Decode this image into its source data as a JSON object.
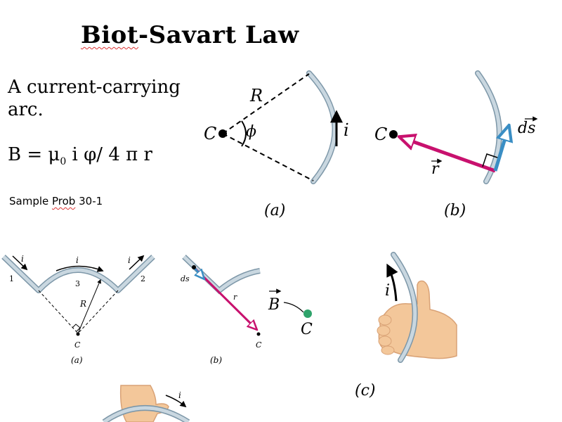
{
  "title": {
    "word1": "Biot",
    "word2": "-Savart Law"
  },
  "description": "A current-carrying arc.",
  "description_lines": [
    "A current-carrying",
    "arc."
  ],
  "formula": {
    "b_part": "B = μ",
    "sub": "0",
    "rest": " i φ/ 4 π r"
  },
  "sample": {
    "before": "Sample ",
    "prob": "Prob",
    "after": " 30-1"
  },
  "fig_a": {
    "R": "R",
    "C": "C",
    "phi": "ϕ",
    "i": "i",
    "caption": "(a)"
  },
  "fig_b": {
    "C": "C",
    "r": "r",
    "ds": "ds",
    "caption": "(b)"
  },
  "fig2_a": {
    "i_left": "i",
    "i_mid": "i",
    "i_right": "i",
    "n1": "1",
    "n2": "2",
    "n3": "3",
    "R": "R",
    "C": "C",
    "caption": "(a)"
  },
  "fig2_b": {
    "ds": "ds",
    "r": "r",
    "C": "C",
    "caption": "(b)"
  },
  "fig2_field": {
    "B": "B",
    "C": "C"
  },
  "fig_c": {
    "i": "i",
    "caption": "(c)"
  },
  "colors": {
    "wire_fill": "#c9d7e0",
    "wire_edge": "#7d97a8",
    "r_vector": "#c8116e",
    "ds_vector": "#3a8ec4",
    "point_green": "#2fa36b",
    "skin": "#f3c79a"
  }
}
